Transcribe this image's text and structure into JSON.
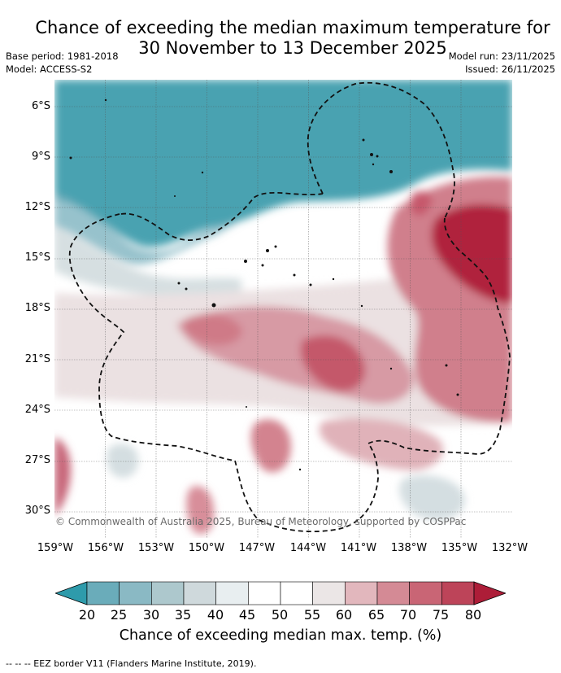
{
  "title_line1": "Chance of exceeding the median maximum temperature for",
  "title_line2": "30 November to 13 December 2025",
  "meta": {
    "base_period": "Base period: 1981-2018",
    "model": "Model: ACCESS-S2",
    "model_run": "Model run: 23/11/2025",
    "issued": "Issued: 26/11/2025"
  },
  "axes": {
    "lat_labels": [
      "6°S",
      "9°S",
      "12°S",
      "15°S",
      "18°S",
      "21°S",
      "24°S",
      "27°S",
      "30°S"
    ],
    "lon_labels": [
      "159°W",
      "156°W",
      "153°W",
      "150°W",
      "147°W",
      "144°W",
      "141°W",
      "138°W",
      "135°W",
      "132°W"
    ],
    "lat_range": [
      -31.5,
      -4.5
    ],
    "lon_range": [
      -159,
      -132
    ]
  },
  "copyright": "© Commonwealth of Australia 2025, Bureau of Meteorology, supported by COSPPac",
  "colorbar": {
    "ticks": [
      "20",
      "25",
      "30",
      "35",
      "40",
      "45",
      "50",
      "55",
      "60",
      "65",
      "70",
      "75",
      "80"
    ],
    "colors": [
      "#2e9bab",
      "#6aacba",
      "#8ab9c4",
      "#adc8cd",
      "#cfd9dc",
      "#e8eef0",
      "#ffffff",
      "#ffffff",
      "#ebe6e6",
      "#e2b7bd",
      "#d48a95",
      "#c96575",
      "#bd4459",
      "#ad1d38"
    ],
    "label": "Chance of exceeding median max. temp. (%)"
  },
  "eez_note": "--  --  -- EEZ border V11 (Flanders Marine Institute, 2019)."
}
